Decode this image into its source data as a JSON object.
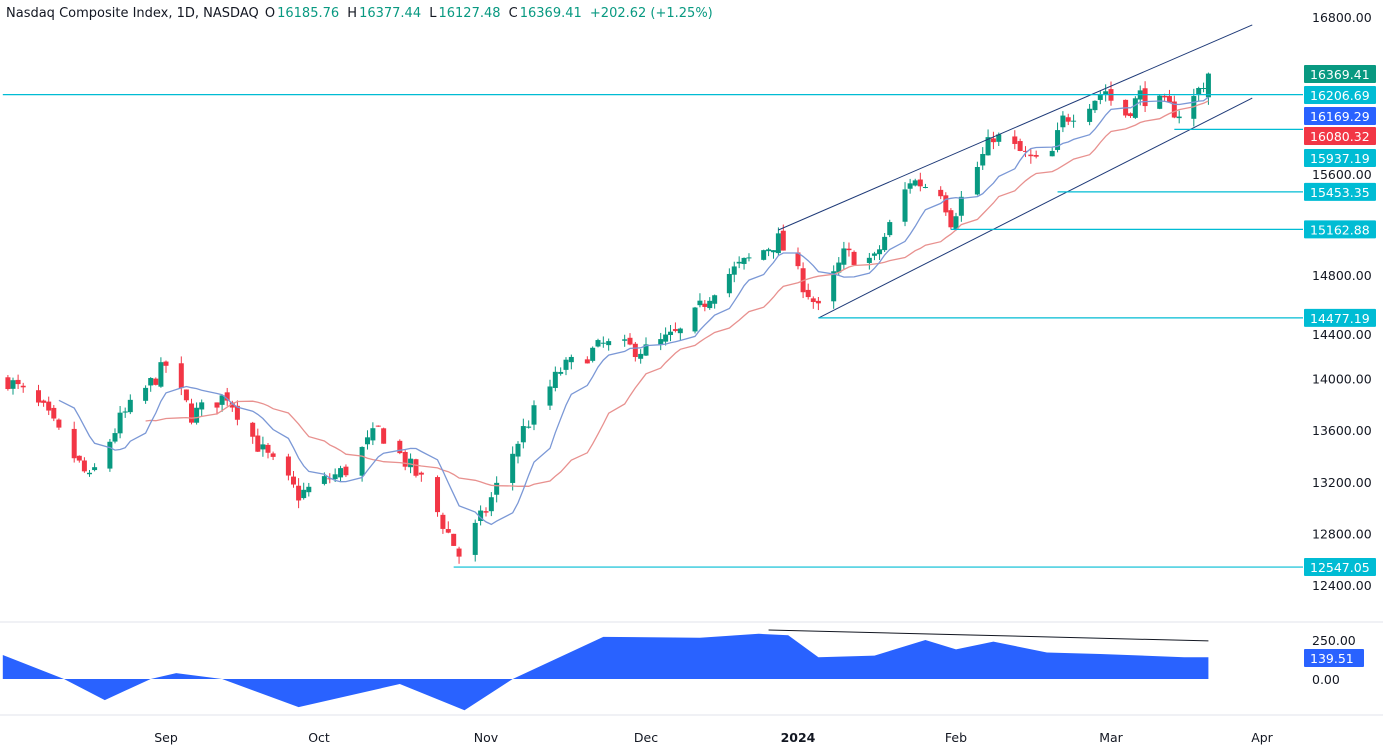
{
  "header": {
    "symbol": "Nasdaq Composite Index, 1D, NASDAQ",
    "open_label": "O",
    "open": "16185.76",
    "high_label": "H",
    "high": "16377.44",
    "low_label": "L",
    "low": "16127.48",
    "close_label": "C",
    "close": "16369.41",
    "change": "+202.62 (+1.25%)"
  },
  "colors": {
    "up": "#089981",
    "down": "#f23645",
    "ma_fast": "#7b98d6",
    "ma_slow": "#e8918f",
    "level": "#00bcd4",
    "channel": "#1e3a78",
    "osc": "#2962ff"
  },
  "chart_data": {
    "type": "candlestick",
    "ylim": [
      12300,
      16900
    ],
    "y_ticks": [
      "16800.00",
      "15600.00",
      "14800.00",
      "14400.00",
      "14000.00",
      "13600.00",
      "13200.00",
      "12800.00",
      "12400.00"
    ],
    "x_ticks": [
      "Sep",
      "Oct",
      "Nov",
      "Dec",
      "2024",
      "Feb",
      "Mar",
      "Apr"
    ],
    "close_path": [
      [
        "2023-08-01",
        13996
      ],
      [
        "2023-08-08",
        13760
      ],
      [
        "2023-08-17",
        13220
      ],
      [
        "2023-08-23",
        13686
      ],
      [
        "2023-09-01",
        14112
      ],
      [
        "2023-09-06",
        13725
      ],
      [
        "2023-09-13",
        13880
      ],
      [
        "2023-09-19",
        13492
      ],
      [
        "2023-09-27",
        13105
      ],
      [
        "2023-10-06",
        13300
      ],
      [
        "2023-10-12",
        13610
      ],
      [
        "2023-10-20",
        13220
      ],
      [
        "2023-10-27",
        12640
      ],
      [
        "2023-11-01",
        12990
      ],
      [
        "2023-11-08",
        13610
      ],
      [
        "2023-11-15",
        14073
      ],
      [
        "2023-11-23",
        14267
      ],
      [
        "2023-12-01",
        14228
      ],
      [
        "2023-12-09",
        14383
      ],
      [
        "2023-12-16",
        14770
      ],
      [
        "2023-12-28",
        15080
      ],
      [
        "2024-01-05",
        14538
      ],
      [
        "2024-01-10",
        14964
      ],
      [
        "2024-01-16",
        14925
      ],
      [
        "2024-01-23",
        15545
      ],
      [
        "2024-01-29",
        15468
      ],
      [
        "2024-01-31",
        15235
      ],
      [
        "2024-02-08",
        15894
      ],
      [
        "2024-02-18",
        15623
      ],
      [
        "2024-02-21",
        16010
      ],
      [
        "2024-02-29",
        16242
      ],
      [
        "2024-03-03",
        16010
      ],
      [
        "2024-03-07",
        16203
      ],
      [
        "2024-03-16",
        16049
      ],
      [
        "2024-03-21",
        16369.41
      ]
    ],
    "moving_averages": [
      {
        "value": "16169.29",
        "color": "#2962ff",
        "line": "#7b98d6",
        "period": 9
      },
      {
        "value": "16080.32",
        "color": "#f23645",
        "line": "#e8918f",
        "period": 20
      }
    ],
    "last_price": "16369.41",
    "levels": [
      {
        "value": 16206.69,
        "label": "16206.69",
        "from": "2023-07-31"
      },
      {
        "value": 15937.19,
        "label": "15937.19",
        "from": "2024-03-14"
      },
      {
        "value": 15453.35,
        "label": "15453.35",
        "from": "2024-02-20"
      },
      {
        "value": 15162.88,
        "label": "15162.88",
        "from": "2024-01-31"
      },
      {
        "value": 14477.19,
        "label": "14477.19",
        "from": "2024-01-05"
      },
      {
        "value": 12547.05,
        "label": "12547.05",
        "from": "2023-10-26"
      }
    ],
    "channel": {
      "upper": [
        [
          "2023-12-28",
          15158
        ],
        [
          "2024-03-30",
          16746
        ]
      ],
      "lower": [
        [
          "2024-01-05",
          14476
        ],
        [
          "2024-03-30",
          16180
        ]
      ]
    },
    "oscillator": {
      "y_ticks": [
        "250.00",
        "0.00"
      ],
      "last": "139.51",
      "path": [
        [
          "2023-07-31",
          154
        ],
        [
          "2023-08-12",
          0
        ],
        [
          "2023-08-20",
          -135
        ],
        [
          "2023-08-29",
          0
        ],
        [
          "2023-09-03",
          38
        ],
        [
          "2023-09-12",
          0
        ],
        [
          "2023-09-27",
          -180
        ],
        [
          "2023-10-16",
          -32
        ],
        [
          "2023-10-28",
          -200
        ],
        [
          "2023-11-06",
          0
        ],
        [
          "2023-11-23",
          270
        ],
        [
          "2023-12-12",
          265
        ],
        [
          "2023-12-24",
          290
        ],
        [
          "2023-12-30",
          280
        ],
        [
          "2024-01-05",
          140
        ],
        [
          "2024-01-16",
          150
        ],
        [
          "2024-01-26",
          250
        ],
        [
          "2024-02-01",
          190
        ],
        [
          "2024-02-08",
          240
        ],
        [
          "2024-02-18",
          170
        ],
        [
          "2024-02-28",
          160
        ],
        [
          "2024-03-16",
          140
        ],
        [
          "2024-03-21",
          139.51
        ]
      ],
      "trendline": [
        [
          "2023-12-26",
          314
        ],
        [
          "2024-03-21",
          244
        ]
      ]
    }
  }
}
